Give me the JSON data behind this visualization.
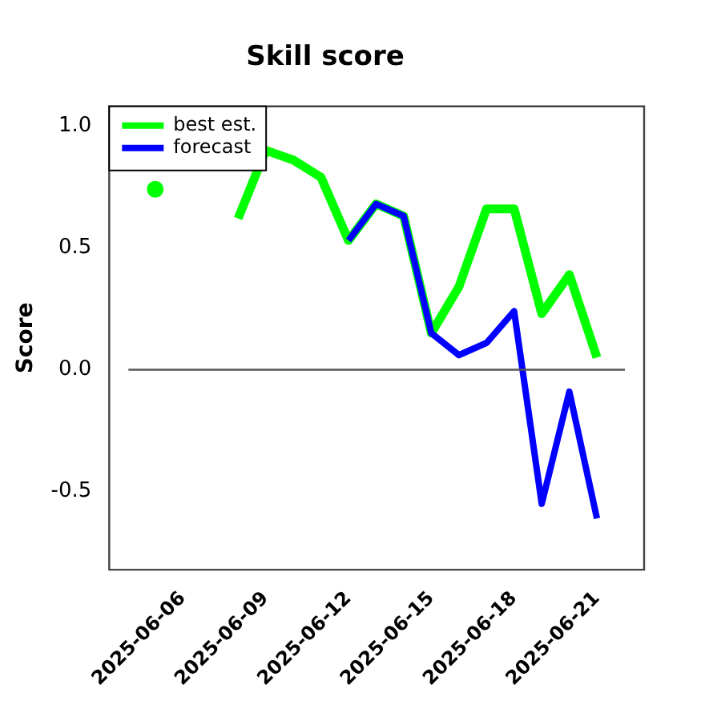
{
  "chart_data": {
    "type": "line",
    "title": "Skill score",
    "ylabel": "Score",
    "series": [
      {
        "name": "best est.",
        "color": "#00ff00",
        "x": [
          "2025-06-05",
          "2025-06-06",
          "2025-06-07",
          "2025-06-08",
          "2025-06-09",
          "2025-06-10",
          "2025-06-11",
          "2025-06-12",
          "2025-06-13",
          "2025-06-14",
          "2025-06-15",
          "2025-06-16",
          "2025-06-17",
          "2025-06-18",
          "2025-06-19",
          "2025-06-20",
          "2025-06-21"
        ],
        "values": [
          0.74,
          null,
          null,
          0.62,
          0.9,
          0.86,
          0.79,
          0.53,
          0.68,
          0.63,
          0.15,
          0.34,
          0.66,
          0.66,
          0.23,
          0.39,
          0.05
        ]
      },
      {
        "name": "forecast",
        "color": "#0000ff",
        "x": [
          "2025-06-12",
          "2025-06-13",
          "2025-06-14",
          "2025-06-15",
          "2025-06-16",
          "2025-06-17",
          "2025-06-18",
          "2025-06-19",
          "2025-06-20",
          "2025-06-21"
        ],
        "values": [
          0.53,
          0.68,
          0.63,
          0.15,
          0.06,
          0.11,
          0.24,
          -0.55,
          -0.09,
          -0.61
        ]
      }
    ],
    "xlim": [
      "2025-06-03T08:00",
      "2025-06-22T17:00"
    ],
    "xticks": [
      "2025-06-06",
      "2025-06-09",
      "2025-06-12",
      "2025-06-15",
      "2025-06-18",
      "2025-06-21"
    ],
    "ylim": [
      -0.82,
      1.08
    ],
    "yticks": [
      {
        "value": 1,
        "label": "1.0"
      },
      {
        "value": 0.5,
        "label": "0.5"
      },
      {
        "value": 0,
        "label": "0.0"
      },
      {
        "value": -0.5,
        "label": "-0.5"
      }
    ],
    "ref_lines": [
      {
        "axis": "y",
        "value": 0,
        "color": "#555555"
      }
    ],
    "legend": "top left",
    "grid": false,
    "marker": "none",
    "line_style": "solid"
  }
}
